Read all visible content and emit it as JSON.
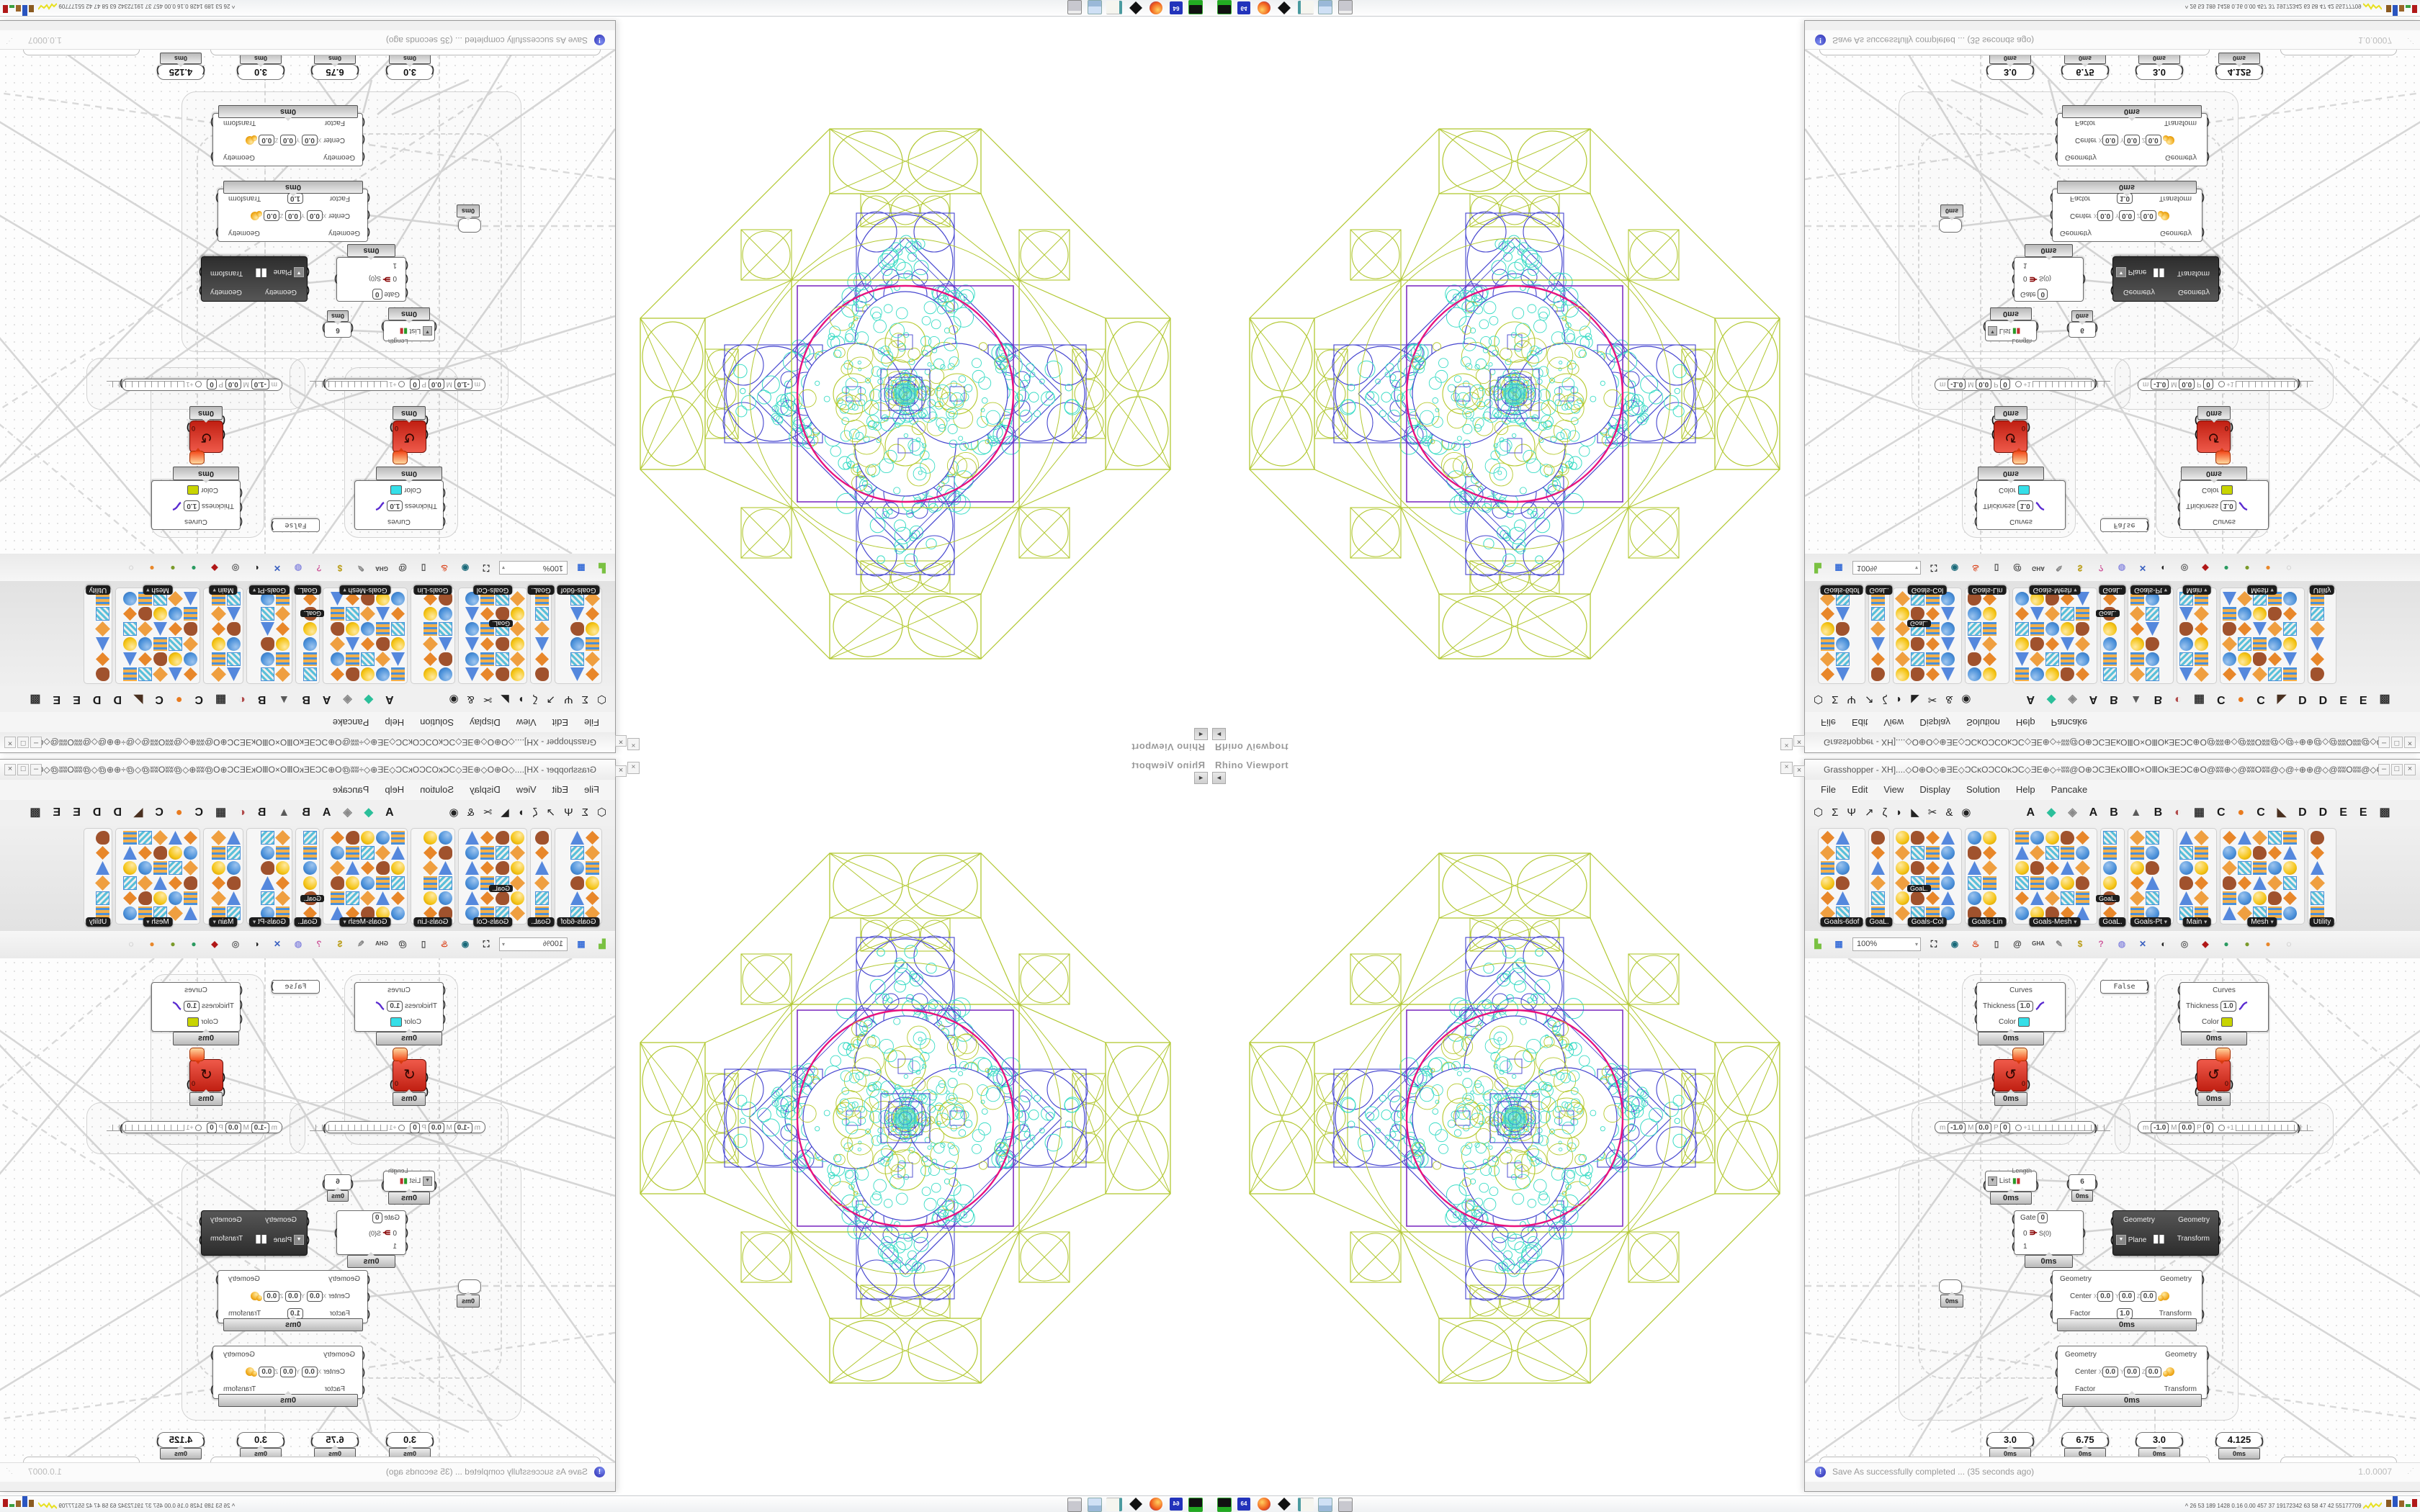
{
  "pattern": {
    "green": "#b2c832",
    "blue": "#4545cf",
    "cyan": "#3bdcc6",
    "magenta": "#e8127e",
    "purple": "#8031c1",
    "olive": "#b5c92e"
  },
  "viewport": {
    "title": "Rhino Viewport",
    "collapse_glyph": "◄",
    "close_glyph": "×"
  },
  "gh_window": {
    "title": "Grasshopper - XH]....◇O⊕O◇⊕ƎE◇ƆCĸOƆCOĸƆC◇ƎE⊕◇÷ʬʬ@O⊕ƆCƎEĸOⅢO×OⅢOĸƎEƆC⊕O@ʬʬ⊕◇@ʬʬOʬʬ@◇@÷⊕⊕@◇@ʬʬOʬʬ@◇O⊕ƆCƎEĸOⅢO×O...",
    "min": "–",
    "max": "□",
    "close": "×",
    "left_x": "×"
  },
  "menu": {
    "items": [
      "File",
      "Edit",
      "View",
      "Display",
      "Solution",
      "Help",
      "Pancake"
    ]
  },
  "tabs": {
    "icon_tabs": [
      "⬡",
      "Σ",
      "Ψ",
      "↗",
      "ζ",
      "◗",
      "◣",
      "✂",
      "&",
      "◉"
    ],
    "letter_tabs": [
      {
        "t": "A",
        "c": "#1a1a1a"
      },
      {
        "t": "◆",
        "c": "#2bbf9a"
      },
      {
        "t": "◈",
        "c": "#8a8a8a"
      },
      {
        "t": "A",
        "c": "#1a1a1a"
      },
      {
        "t": "B",
        "c": "#1a1a1a"
      },
      {
        "t": "▲",
        "c": "#5a5a5a"
      },
      {
        "t": "B",
        "c": "#1a1a1a"
      },
      {
        "t": "◐",
        "c": "#b04a4a"
      },
      {
        "t": "▦",
        "c": "#333333"
      },
      {
        "t": "C",
        "c": "#1a1a1a"
      },
      {
        "t": "●",
        "c": "#e87a1e"
      },
      {
        "t": "C",
        "c": "#1a1a1a"
      },
      {
        "t": "◣",
        "c": "#4a3020"
      },
      {
        "t": "D",
        "c": "#1a1a1a"
      },
      {
        "t": "D",
        "c": "#1a1a1a"
      },
      {
        "t": "E",
        "c": "#1a1a1a"
      },
      {
        "t": "E",
        "c": "#1a1a1a"
      },
      {
        "t": "▩",
        "c": "#333333"
      }
    ]
  },
  "palette": {
    "groups": [
      {
        "label": "Goals-6dof",
        "arrow": false
      },
      {
        "label": "GoaL.",
        "arrow": false
      },
      {
        "label": "Goals-Col",
        "arrow": false
      },
      {
        "label": "Goals-Lin",
        "arrow": false
      },
      {
        "label": "Goals-Mesh",
        "arrow": true
      },
      {
        "label": "GoaL.",
        "arrow": false
      },
      {
        "label": "Goals-Pt",
        "arrow": true
      },
      {
        "label": "Main",
        "arrow": true
      },
      {
        "label": "Mesh",
        "arrow": true
      },
      {
        "label": "Utility",
        "arrow": false
      }
    ],
    "mini_tag": "GoaL."
  },
  "toolbar": {
    "zoom": "100%",
    "gha": "GHA",
    "at": "@",
    "dd": "▾"
  },
  "canvas": {
    "time": "0ms",
    "preview": {
      "in1": "Curves",
      "in2": "Thickness",
      "thickness": "1.0",
      "in3": "Color"
    },
    "preview_colors": {
      "left": "#35dfe8",
      "right": "#c8d400"
    },
    "toggle": "False",
    "domain": {
      "m": "m",
      "m_val": "-1.0",
      "M": "M",
      "M_val": "0.0",
      "P": "P",
      "P_val": "0",
      "plus": "+1"
    },
    "list": {
      "in": "List",
      "out": "Length"
    },
    "panel_value": "6",
    "gate": {
      "in1": "Gate",
      "in1_val": "0",
      "in2": "0",
      "in3": "1",
      "out": "S(0)"
    },
    "mover": {
      "in1": "Geometry",
      "in2": "Plane",
      "out1": "Geometry",
      "out2": "Transform"
    },
    "scale": {
      "in1": "Geometry",
      "center": "Center",
      "x": "X",
      "y": "Y",
      "z": "Z",
      "cv": "0.0",
      "factor": "Factor",
      "factor_val": "1.0",
      "out1": "Geometry",
      "out2": "Transform"
    },
    "sliders": [
      "3.0",
      "6.75",
      "3.0",
      "4.125"
    ]
  },
  "statusbar": {
    "message": "Save As successfully completed ... (35 seconds ago)",
    "version": "1.0.0007",
    "icon": "!"
  },
  "taskbar": {
    "chevron": "^",
    "tray_numbers": "26  53  189 1428 0.16 0.00 457  37  19172342 63  58  47  42 55177709",
    "icons": [
      "emulator",
      "floppy-64",
      "firefox",
      "cat-tool",
      "notepad",
      "calculator",
      "printer"
    ],
    "floppy_label": "64"
  }
}
